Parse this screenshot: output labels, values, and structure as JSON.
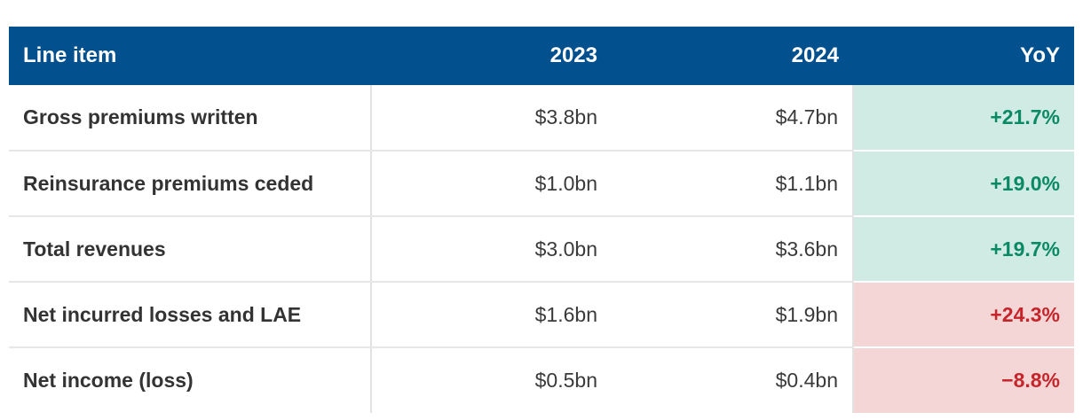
{
  "table": {
    "headers": {
      "item": "Line item",
      "y2023": "2023",
      "y2024": "2024",
      "yoy": "YoY"
    },
    "rows": [
      {
        "item": "Gross premiums written",
        "y2023": "$3.8bn",
        "y2024": "$4.7bn",
        "yoy": "+21.7%",
        "tone": "positive"
      },
      {
        "item": "Reinsurance premiums ceded",
        "y2023": "$1.0bn",
        "y2024": "$1.1bn",
        "yoy": "+19.0%",
        "tone": "positive"
      },
      {
        "item": "Total revenues",
        "y2023": "$3.0bn",
        "y2024": "$3.6bn",
        "yoy": "+19.7%",
        "tone": "positive"
      },
      {
        "item": "Net incurred losses and LAE",
        "y2023": "$1.6bn",
        "y2024": "$1.9bn",
        "yoy": "+24.3%",
        "tone": "negative"
      },
      {
        "item": "Net income (loss)",
        "y2023": "$0.5bn",
        "y2024": "$0.4bn",
        "yoy": "−8.8%",
        "tone": "negative"
      }
    ]
  },
  "colors": {
    "header_bg": "#03508f",
    "positive_bg": "#d0ebe4",
    "positive_text": "#0a8a64",
    "negative_bg": "#f4d6d6",
    "negative_text": "#c6252b"
  }
}
